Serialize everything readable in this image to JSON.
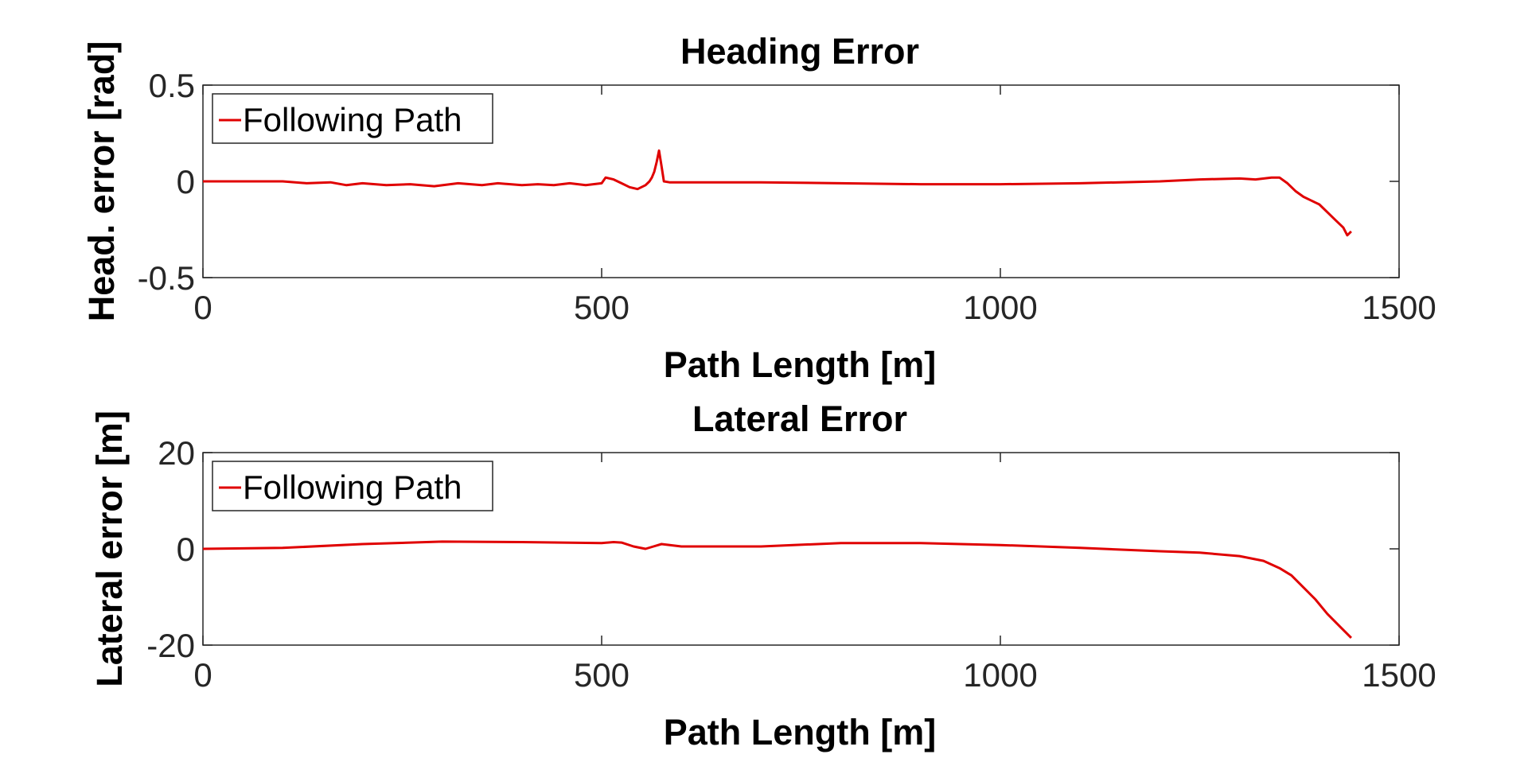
{
  "chart_data": [
    {
      "type": "line",
      "title": "Heading Error",
      "xlabel": "Path Length [m]",
      "ylabel": "Head. error [rad]",
      "xlim": [
        0,
        1500
      ],
      "ylim": [
        -0.5,
        0.5
      ],
      "xticks": [
        0,
        500,
        1000,
        1500
      ],
      "yticks": [
        -0.5,
        0,
        0.5
      ],
      "ytick_labels": [
        "-0.5",
        "0",
        "0.5"
      ],
      "grid": false,
      "legend": "top-left",
      "series": [
        {
          "name": "Following Path",
          "color": "#e00000",
          "x": [
            0,
            50,
            100,
            130,
            160,
            180,
            200,
            230,
            260,
            290,
            320,
            350,
            370,
            400,
            420,
            440,
            460,
            480,
            500,
            505,
            515,
            525,
            535,
            545,
            555,
            560,
            563,
            566,
            569,
            572,
            575,
            578,
            585,
            600,
            700,
            800,
            900,
            1000,
            1100,
            1150,
            1200,
            1250,
            1300,
            1320,
            1340,
            1350,
            1360,
            1370,
            1380,
            1390,
            1400,
            1410,
            1420,
            1430,
            1435,
            1440
          ],
          "y": [
            0.0,
            0.0,
            0.0,
            -0.01,
            -0.005,
            -0.02,
            -0.01,
            -0.02,
            -0.015,
            -0.025,
            -0.01,
            -0.02,
            -0.01,
            -0.02,
            -0.015,
            -0.02,
            -0.01,
            -0.02,
            -0.01,
            0.02,
            0.01,
            -0.01,
            -0.03,
            -0.04,
            -0.02,
            0.0,
            0.02,
            0.05,
            0.1,
            0.16,
            0.08,
            0.0,
            -0.005,
            -0.005,
            -0.005,
            -0.01,
            -0.015,
            -0.015,
            -0.01,
            -0.005,
            0.0,
            0.01,
            0.015,
            0.01,
            0.02,
            0.02,
            -0.01,
            -0.05,
            -0.08,
            -0.1,
            -0.12,
            -0.16,
            -0.2,
            -0.24,
            -0.28,
            -0.26
          ]
        }
      ]
    },
    {
      "type": "line",
      "title": "Lateral Error",
      "xlabel": "Path Length [m]",
      "ylabel": "Lateral error [m]",
      "xlim": [
        0,
        1500
      ],
      "ylim": [
        -20,
        20
      ],
      "xticks": [
        0,
        500,
        1000,
        1500
      ],
      "yticks": [
        -20,
        0,
        20
      ],
      "ytick_labels": [
        "-20",
        "0",
        "20"
      ],
      "grid": false,
      "legend": "top-left",
      "series": [
        {
          "name": "Following Path",
          "color": "#e00000",
          "x": [
            0,
            100,
            200,
            300,
            400,
            500,
            515,
            525,
            540,
            555,
            565,
            575,
            600,
            700,
            800,
            900,
            1000,
            1100,
            1200,
            1250,
            1300,
            1330,
            1350,
            1365,
            1380,
            1395,
            1410,
            1425,
            1440
          ],
          "y": [
            0.0,
            0.2,
            1.0,
            1.5,
            1.4,
            1.2,
            1.4,
            1.3,
            0.5,
            0.0,
            0.5,
            1.0,
            0.5,
            0.5,
            1.2,
            1.2,
            0.8,
            0.2,
            -0.5,
            -0.8,
            -1.5,
            -2.5,
            -4.0,
            -5.5,
            -8.0,
            -10.5,
            -13.5,
            -16.0,
            -18.5
          ]
        }
      ]
    }
  ]
}
